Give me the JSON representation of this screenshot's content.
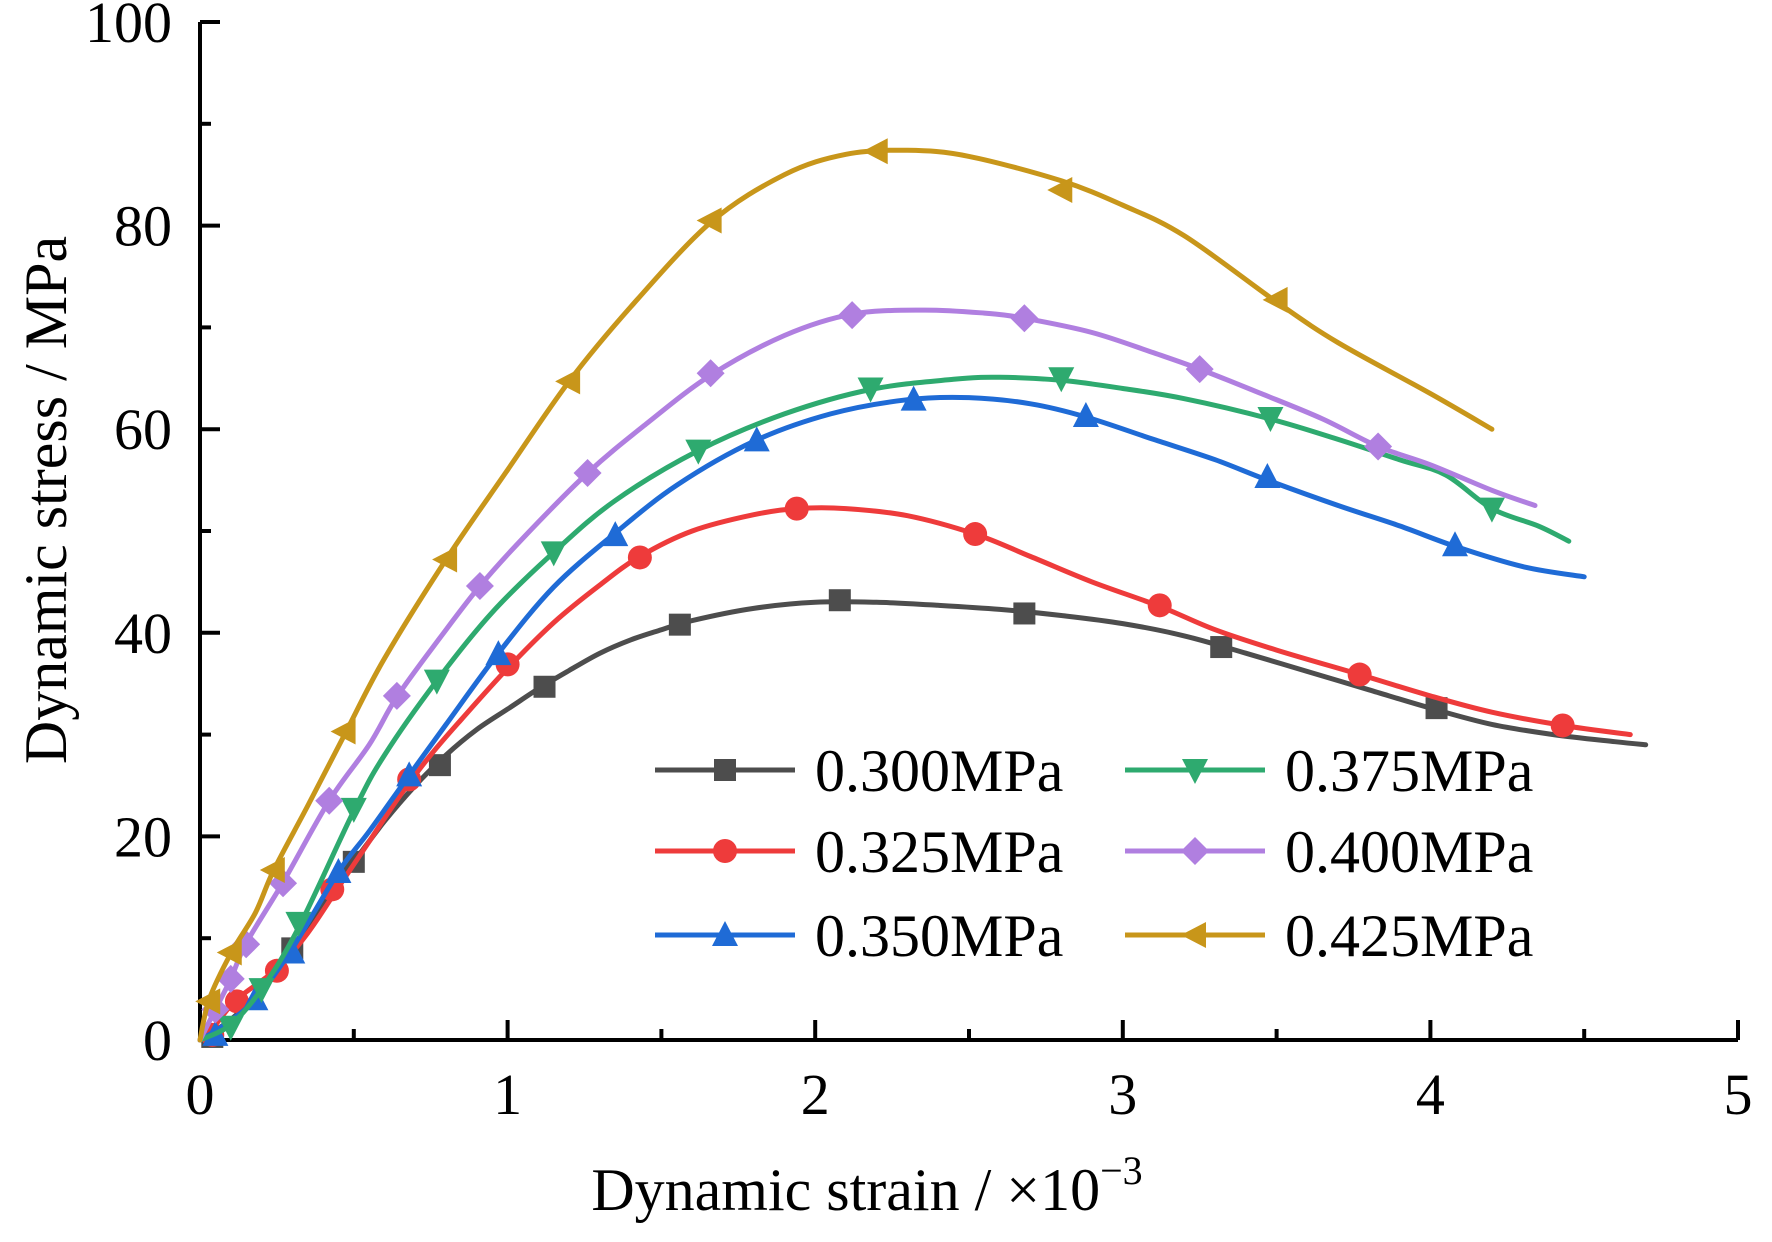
{
  "chart_data": {
    "type": "line",
    "xlabel_main": "Dynamic strain / ×10",
    "xlabel_exp": "−3",
    "ylabel": "Dynamic stress / MPa",
    "xlim": [
      0,
      5
    ],
    "ylim": [
      0,
      100
    ],
    "x_ticks": [
      "0",
      "1",
      "2",
      "3",
      "4",
      "5"
    ],
    "y_ticks": [
      "0",
      "20",
      "40",
      "60",
      "80",
      "100"
    ],
    "grid": false,
    "legend_placement": "lower-right, two columns",
    "series": [
      {
        "name": "0.300MPa",
        "color": "#4d4d4d",
        "marker": "square",
        "line": [
          [
            0,
            0
          ],
          [
            0.1,
            2
          ],
          [
            0.2,
            5
          ],
          [
            0.3,
            9
          ],
          [
            0.4,
            13.5
          ],
          [
            0.5,
            17.5
          ],
          [
            0.6,
            21.5
          ],
          [
            0.7,
            25
          ],
          [
            0.8,
            28
          ],
          [
            0.9,
            30.5
          ],
          [
            1.0,
            32.5
          ],
          [
            1.1,
            34.5
          ],
          [
            1.2,
            36.3
          ],
          [
            1.3,
            38
          ],
          [
            1.4,
            39.3
          ],
          [
            1.5,
            40.3
          ],
          [
            1.6,
            41.2
          ],
          [
            1.8,
            42.4
          ],
          [
            2.0,
            43
          ],
          [
            2.2,
            43
          ],
          [
            2.4,
            42.7
          ],
          [
            2.6,
            42.3
          ],
          [
            2.8,
            41.7
          ],
          [
            3.0,
            40.9
          ],
          [
            3.2,
            39.7
          ],
          [
            3.4,
            38
          ],
          [
            3.6,
            36.2
          ],
          [
            3.8,
            34.4
          ],
          [
            4.0,
            32.6
          ],
          [
            4.2,
            31
          ],
          [
            4.4,
            30
          ],
          [
            4.6,
            29.3
          ],
          [
            4.7,
            29
          ]
        ],
        "markers": [
          [
            0.04,
            0.3
          ],
          [
            0.3,
            9
          ],
          [
            0.5,
            17.5
          ],
          [
            0.78,
            27
          ],
          [
            1.12,
            34.7
          ],
          [
            1.56,
            40.8
          ],
          [
            2.08,
            43.2
          ],
          [
            2.68,
            41.9
          ],
          [
            3.32,
            38.6
          ],
          [
            4.02,
            32.6
          ]
        ]
      },
      {
        "name": "0.325MPa",
        "color": "#ee3b3b",
        "marker": "circle",
        "line": [
          [
            0,
            0
          ],
          [
            0.05,
            1.5
          ],
          [
            0.12,
            4
          ],
          [
            0.25,
            7
          ],
          [
            0.35,
            10.5
          ],
          [
            0.45,
            15
          ],
          [
            0.55,
            19.5
          ],
          [
            0.65,
            24
          ],
          [
            0.75,
            28
          ],
          [
            0.85,
            31.5
          ],
          [
            1.0,
            36.5
          ],
          [
            1.15,
            41
          ],
          [
            1.3,
            44.7
          ],
          [
            1.43,
            47.5
          ],
          [
            1.6,
            50
          ],
          [
            1.8,
            51.6
          ],
          [
            1.94,
            52.2
          ],
          [
            2.1,
            52.2
          ],
          [
            2.3,
            51.5
          ],
          [
            2.52,
            49.7
          ],
          [
            2.7,
            47.5
          ],
          [
            2.9,
            45
          ],
          [
            3.12,
            42.6
          ],
          [
            3.3,
            40.3
          ],
          [
            3.5,
            38.3
          ],
          [
            3.77,
            35.9
          ],
          [
            4.0,
            33.8
          ],
          [
            4.2,
            32.2
          ],
          [
            4.43,
            30.9
          ],
          [
            4.65,
            30
          ]
        ],
        "markers": [
          [
            0.04,
            0.5
          ],
          [
            0.12,
            3.8
          ],
          [
            0.25,
            6.8
          ],
          [
            0.43,
            14.8
          ],
          [
            0.68,
            25.6
          ],
          [
            1.0,
            36.9
          ],
          [
            1.43,
            47.4
          ],
          [
            1.94,
            52.2
          ],
          [
            2.52,
            49.7
          ],
          [
            3.12,
            42.7
          ],
          [
            3.77,
            35.9
          ],
          [
            4.43,
            30.9
          ]
        ]
      },
      {
        "name": "0.350MPa",
        "color": "#1f6bd6",
        "marker": "triangle-up",
        "line": [
          [
            0,
            0
          ],
          [
            0.08,
            1.5
          ],
          [
            0.18,
            4
          ],
          [
            0.3,
            9
          ],
          [
            0.45,
            16.5
          ],
          [
            0.55,
            20.5
          ],
          [
            0.68,
            26
          ],
          [
            0.8,
            31
          ],
          [
            0.97,
            38
          ],
          [
            1.15,
            44.5
          ],
          [
            1.35,
            49.8
          ],
          [
            1.55,
            54.5
          ],
          [
            1.8,
            58.8
          ],
          [
            2.05,
            61.5
          ],
          [
            2.3,
            62.9
          ],
          [
            2.5,
            63.1
          ],
          [
            2.7,
            62.5
          ],
          [
            2.88,
            61.2
          ],
          [
            3.1,
            59
          ],
          [
            3.3,
            57
          ],
          [
            3.47,
            55
          ],
          [
            3.7,
            52.5
          ],
          [
            3.9,
            50.5
          ],
          [
            4.08,
            48.5
          ],
          [
            4.3,
            46.5
          ],
          [
            4.5,
            45.5
          ]
        ],
        "markers": [
          [
            0.05,
            0.5
          ],
          [
            0.18,
            4
          ],
          [
            0.3,
            8.6
          ],
          [
            0.45,
            16.5
          ],
          [
            0.68,
            26
          ],
          [
            0.97,
            37.9
          ],
          [
            1.35,
            49.6
          ],
          [
            1.81,
            58.9
          ],
          [
            2.32,
            62.9
          ],
          [
            2.88,
            61.3
          ],
          [
            3.47,
            55.3
          ],
          [
            4.08,
            48.6
          ]
        ]
      },
      {
        "name": "0.375MPa",
        "color": "#2eaa6f",
        "marker": "triangle-down",
        "line": [
          [
            0,
            0
          ],
          [
            0.1,
            1.5
          ],
          [
            0.2,
            5
          ],
          [
            0.32,
            11
          ],
          [
            0.5,
            22.5
          ],
          [
            0.6,
            28
          ],
          [
            0.77,
            35.3
          ],
          [
            0.95,
            42
          ],
          [
            1.15,
            47.9
          ],
          [
            1.35,
            53
          ],
          [
            1.62,
            57.9
          ],
          [
            1.9,
            61.5
          ],
          [
            2.18,
            63.9
          ],
          [
            2.45,
            64.9
          ],
          [
            2.6,
            65.1
          ],
          [
            2.8,
            64.8
          ],
          [
            3.0,
            64
          ],
          [
            3.2,
            63
          ],
          [
            3.48,
            61
          ],
          [
            3.7,
            59
          ],
          [
            3.9,
            57
          ],
          [
            4.05,
            55.5
          ],
          [
            4.2,
            52.2
          ],
          [
            4.35,
            50.5
          ],
          [
            4.45,
            49
          ]
        ],
        "markers": [
          [
            0.1,
            1.3
          ],
          [
            0.2,
            5
          ],
          [
            0.32,
            11.5
          ],
          [
            0.5,
            22.7
          ],
          [
            0.77,
            35.3
          ],
          [
            1.15,
            47.9
          ],
          [
            1.62,
            57.9
          ],
          [
            2.18,
            64
          ],
          [
            2.8,
            65
          ],
          [
            3.48,
            61.1
          ],
          [
            4.2,
            52.2
          ]
        ]
      },
      {
        "name": "0.400MPa",
        "color": "#b07fe0",
        "marker": "diamond",
        "line": [
          [
            0,
            0
          ],
          [
            0.05,
            3
          ],
          [
            0.1,
            6
          ],
          [
            0.15,
            9.5
          ],
          [
            0.27,
            15.5
          ],
          [
            0.42,
            23.5
          ],
          [
            0.55,
            29
          ],
          [
            0.64,
            33.7
          ],
          [
            0.78,
            39.5
          ],
          [
            0.91,
            44.6
          ],
          [
            1.05,
            49.3
          ],
          [
            1.26,
            55.7
          ],
          [
            1.45,
            60.5
          ],
          [
            1.66,
            65.3
          ],
          [
            1.9,
            69.2
          ],
          [
            2.12,
            71.3
          ],
          [
            2.35,
            71.7
          ],
          [
            2.55,
            71.4
          ],
          [
            2.68,
            70.9
          ],
          [
            2.9,
            69.5
          ],
          [
            3.1,
            67.5
          ],
          [
            3.25,
            65.9
          ],
          [
            3.45,
            63.5
          ],
          [
            3.65,
            61
          ],
          [
            3.83,
            58.3
          ],
          [
            4.0,
            56.5
          ],
          [
            4.2,
            54
          ],
          [
            4.34,
            52.5
          ]
        ],
        "markers": [
          [
            0.05,
            3
          ],
          [
            0.1,
            6
          ],
          [
            0.15,
            9.4
          ],
          [
            0.27,
            15.4
          ],
          [
            0.42,
            23.5
          ],
          [
            0.64,
            33.8
          ],
          [
            0.91,
            44.6
          ],
          [
            1.26,
            55.7
          ],
          [
            1.66,
            65.5
          ],
          [
            2.12,
            71.2
          ],
          [
            2.68,
            70.9
          ],
          [
            3.25,
            65.9
          ],
          [
            3.83,
            58.3
          ]
        ]
      },
      {
        "name": "0.425MPa",
        "color": "#c8961a",
        "marker": "triangle-left",
        "line": [
          [
            0,
            0
          ],
          [
            0.03,
            4
          ],
          [
            0.1,
            8.5
          ],
          [
            0.18,
            12.5
          ],
          [
            0.24,
            16.7
          ],
          [
            0.35,
            23
          ],
          [
            0.47,
            30
          ],
          [
            0.6,
            37.5
          ],
          [
            0.8,
            47.2
          ],
          [
            1.0,
            56
          ],
          [
            1.2,
            64.7
          ],
          [
            1.4,
            72
          ],
          [
            1.66,
            80.3
          ],
          [
            1.9,
            85
          ],
          [
            2.1,
            87
          ],
          [
            2.3,
            87.4
          ],
          [
            2.5,
            86.8
          ],
          [
            2.8,
            84.4
          ],
          [
            3.0,
            82
          ],
          [
            3.2,
            79
          ],
          [
            3.5,
            72.5
          ],
          [
            3.7,
            68.5
          ],
          [
            4.0,
            63.5
          ],
          [
            4.2,
            60
          ]
        ],
        "markers": [
          [
            0.03,
            3.8
          ],
          [
            0.1,
            8.6
          ],
          [
            0.24,
            16.7
          ],
          [
            0.47,
            30.3
          ],
          [
            0.8,
            47.2
          ],
          [
            1.2,
            64.7
          ],
          [
            1.66,
            80.5
          ],
          [
            2.2,
            87.3
          ],
          [
            2.8,
            83.5
          ],
          [
            3.5,
            72.7
          ]
        ]
      }
    ]
  }
}
